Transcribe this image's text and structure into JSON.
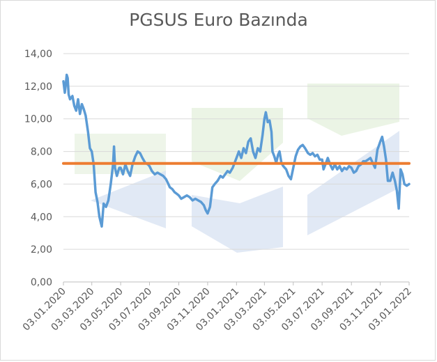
{
  "chart_data": {
    "type": "line",
    "title": "PGSUS Euro Bazında",
    "xlabel": "",
    "ylabel": "",
    "ylim": [
      0,
      14
    ],
    "y_ticks": [
      "0,00",
      "2,00",
      "4,00",
      "6,00",
      "8,00",
      "10,00",
      "12,00",
      "14,00"
    ],
    "x_ticks": [
      "03.01.2020",
      "03.03.2020",
      "03.05.2020",
      "03.07.2020",
      "03.09.2020",
      "03.11.2020",
      "03.01.2021",
      "03.03.2021",
      "03.05.2021",
      "03.07.2021",
      "03.09.2021",
      "03.11.2021",
      "03.01.2022"
    ],
    "grid": "horizontal",
    "legend": "none",
    "series": [
      {
        "color": "#5b9bd5",
        "points": [
          [
            "2020-01-03",
            12.3
          ],
          [
            "2020-01-06",
            11.6
          ],
          [
            "2020-01-08",
            12.1
          ],
          [
            "2020-01-10",
            12.7
          ],
          [
            "2020-01-12",
            12.5
          ],
          [
            "2020-01-14",
            11.5
          ],
          [
            "2020-01-17",
            11.2
          ],
          [
            "2020-01-22",
            11.4
          ],
          [
            "2020-01-26",
            10.8
          ],
          [
            "2020-01-30",
            10.5
          ],
          [
            "2020-02-03",
            11.2
          ],
          [
            "2020-02-07",
            10.3
          ],
          [
            "2020-02-11",
            10.9
          ],
          [
            "2020-02-15",
            10.6
          ],
          [
            "2020-02-19",
            10.2
          ],
          [
            "2020-02-24",
            9.2
          ],
          [
            "2020-02-28",
            8.2
          ],
          [
            "2020-03-03",
            8.0
          ],
          [
            "2020-03-07",
            7.2
          ],
          [
            "2020-03-11",
            5.5
          ],
          [
            "2020-03-15",
            4.9
          ],
          [
            "2020-03-19",
            4.0
          ],
          [
            "2020-03-24",
            3.4
          ],
          [
            "2020-03-28",
            4.8
          ],
          [
            "2020-04-02",
            4.6
          ],
          [
            "2020-04-07",
            5.0
          ],
          [
            "2020-04-12",
            6.0
          ],
          [
            "2020-04-17",
            7.2
          ],
          [
            "2020-04-19",
            8.3
          ],
          [
            "2020-04-21",
            7.0
          ],
          [
            "2020-04-25",
            6.5
          ],
          [
            "2020-04-30",
            7.0
          ],
          [
            "2020-05-03",
            7.0
          ],
          [
            "2020-05-08",
            6.6
          ],
          [
            "2020-05-13",
            7.2
          ],
          [
            "2020-05-18",
            6.8
          ],
          [
            "2020-05-23",
            6.5
          ],
          [
            "2020-05-28",
            7.2
          ],
          [
            "2020-06-03",
            7.7
          ],
          [
            "2020-06-08",
            8.0
          ],
          [
            "2020-06-13",
            7.9
          ],
          [
            "2020-06-18",
            7.6
          ],
          [
            "2020-06-24",
            7.3
          ],
          [
            "2020-06-30",
            7.2
          ],
          [
            "2020-07-03",
            7.1
          ],
          [
            "2020-07-08",
            6.8
          ],
          [
            "2020-07-14",
            6.6
          ],
          [
            "2020-07-20",
            6.7
          ],
          [
            "2020-07-26",
            6.6
          ],
          [
            "2020-08-01",
            6.5
          ],
          [
            "2020-08-07",
            6.3
          ],
          [
            "2020-08-12",
            6.0
          ],
          [
            "2020-08-15",
            5.8
          ],
          [
            "2020-08-20",
            5.7
          ],
          [
            "2020-08-25",
            5.5
          ],
          [
            "2020-08-30",
            5.4
          ],
          [
            "2020-09-03",
            5.3
          ],
          [
            "2020-09-08",
            5.1
          ],
          [
            "2020-09-14",
            5.2
          ],
          [
            "2020-09-20",
            5.3
          ],
          [
            "2020-09-26",
            5.2
          ],
          [
            "2020-10-02",
            5.0
          ],
          [
            "2020-10-08",
            5.1
          ],
          [
            "2020-10-14",
            5.0
          ],
          [
            "2020-10-20",
            4.9
          ],
          [
            "2020-10-26",
            4.7
          ],
          [
            "2020-10-30",
            4.4
          ],
          [
            "2020-11-03",
            4.2
          ],
          [
            "2020-11-08",
            4.6
          ],
          [
            "2020-11-13",
            5.8
          ],
          [
            "2020-11-18",
            6.0
          ],
          [
            "2020-11-24",
            6.2
          ],
          [
            "2020-11-30",
            6.5
          ],
          [
            "2020-12-05",
            6.4
          ],
          [
            "2020-12-10",
            6.6
          ],
          [
            "2020-12-15",
            6.8
          ],
          [
            "2020-12-20",
            6.7
          ],
          [
            "2020-12-26",
            7.0
          ],
          [
            "2021-01-03",
            7.6
          ],
          [
            "2021-01-08",
            8.0
          ],
          [
            "2021-01-13",
            7.6
          ],
          [
            "2021-01-18",
            8.2
          ],
          [
            "2021-01-23",
            7.9
          ],
          [
            "2021-01-28",
            8.6
          ],
          [
            "2021-02-02",
            8.8
          ],
          [
            "2021-02-07",
            8.0
          ],
          [
            "2021-02-12",
            7.6
          ],
          [
            "2021-02-17",
            8.2
          ],
          [
            "2021-02-22",
            8.0
          ],
          [
            "2021-02-27",
            9.0
          ],
          [
            "2021-03-03",
            10.0
          ],
          [
            "2021-03-06",
            10.4
          ],
          [
            "2021-03-10",
            9.8
          ],
          [
            "2021-03-14",
            9.9
          ],
          [
            "2021-03-18",
            9.2
          ],
          [
            "2021-03-20",
            8.0
          ],
          [
            "2021-03-24",
            7.7
          ],
          [
            "2021-03-28",
            7.3
          ],
          [
            "2021-04-01",
            7.8
          ],
          [
            "2021-04-04",
            8.0
          ],
          [
            "2021-04-08",
            7.3
          ],
          [
            "2021-04-12",
            7.1
          ],
          [
            "2021-04-18",
            6.9
          ],
          [
            "2021-04-23",
            6.5
          ],
          [
            "2021-04-28",
            6.3
          ],
          [
            "2021-05-03",
            7.0
          ],
          [
            "2021-05-08",
            7.7
          ],
          [
            "2021-05-13",
            8.1
          ],
          [
            "2021-05-18",
            8.3
          ],
          [
            "2021-05-23",
            8.4
          ],
          [
            "2021-05-28",
            8.2
          ],
          [
            "2021-06-03",
            7.9
          ],
          [
            "2021-06-08",
            7.8
          ],
          [
            "2021-06-13",
            7.9
          ],
          [
            "2021-06-18",
            7.7
          ],
          [
            "2021-06-23",
            7.8
          ],
          [
            "2021-06-28",
            7.5
          ],
          [
            "2021-07-03",
            7.5
          ],
          [
            "2021-07-06",
            6.9
          ],
          [
            "2021-07-10",
            7.2
          ],
          [
            "2021-07-15",
            7.6
          ],
          [
            "2021-07-20",
            7.2
          ],
          [
            "2021-07-25",
            6.9
          ],
          [
            "2021-07-30",
            7.2
          ],
          [
            "2021-08-04",
            6.9
          ],
          [
            "2021-08-09",
            7.1
          ],
          [
            "2021-08-14",
            6.8
          ],
          [
            "2021-08-19",
            7.0
          ],
          [
            "2021-08-24",
            6.9
          ],
          [
            "2021-08-29",
            7.1
          ],
          [
            "2021-09-03",
            7.0
          ],
          [
            "2021-09-08",
            6.7
          ],
          [
            "2021-09-13",
            6.8
          ],
          [
            "2021-09-18",
            7.1
          ],
          [
            "2021-09-23",
            7.2
          ],
          [
            "2021-09-28",
            7.4
          ],
          [
            "2021-10-03",
            7.4
          ],
          [
            "2021-10-08",
            7.5
          ],
          [
            "2021-10-13",
            7.6
          ],
          [
            "2021-10-18",
            7.3
          ],
          [
            "2021-10-23",
            7.0
          ],
          [
            "2021-10-28",
            8.1
          ],
          [
            "2021-11-03",
            8.6
          ],
          [
            "2021-11-07",
            8.9
          ],
          [
            "2021-11-11",
            8.3
          ],
          [
            "2021-11-15",
            7.5
          ],
          [
            "2021-11-19",
            6.2
          ],
          [
            "2021-11-24",
            6.2
          ],
          [
            "2021-11-29",
            6.7
          ],
          [
            "2021-12-04",
            6.2
          ],
          [
            "2021-12-08",
            5.6
          ],
          [
            "2021-12-12",
            4.5
          ],
          [
            "2021-12-16",
            6.9
          ],
          [
            "2021-12-20",
            6.6
          ],
          [
            "2021-12-24",
            6.0
          ],
          [
            "2021-12-29",
            5.9
          ],
          [
            "2022-01-03",
            6.0
          ]
        ]
      },
      {
        "color": "#ed7d31",
        "points": [
          [
            "2020-01-03",
            7.27
          ],
          [
            "2022-01-03",
            7.27
          ]
        ]
      }
    ]
  }
}
